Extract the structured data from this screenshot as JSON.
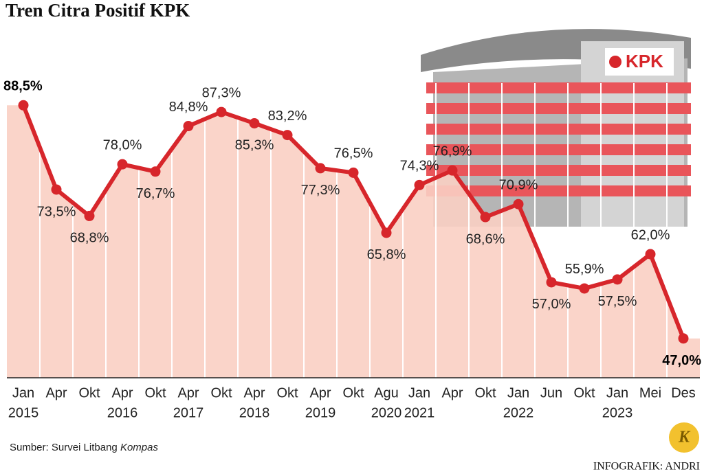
{
  "chart_data": {
    "type": "line",
    "title": "Tren Citra Positif KPK",
    "categories": [
      "Jan",
      "Apr",
      "Okt",
      "Apr",
      "Okt",
      "Apr",
      "Okt",
      "Apr",
      "Okt",
      "Apr",
      "Okt",
      "Agu",
      "Jan",
      "Apr",
      "Okt",
      "Jan",
      "Jun",
      "Okt",
      "Jan",
      "Mei",
      "Des"
    ],
    "years": [
      "2015",
      null,
      null,
      "2016",
      null,
      "2017",
      null,
      "2018",
      null,
      "2019",
      null,
      "2020",
      "2021",
      null,
      null,
      "2022",
      null,
      null,
      "2023",
      null,
      null
    ],
    "values": [
      88.5,
      73.5,
      68.8,
      78.0,
      76.7,
      84.8,
      87.3,
      85.3,
      83.2,
      77.3,
      76.5,
      65.8,
      74.3,
      76.9,
      68.6,
      70.9,
      57.0,
      55.9,
      57.5,
      62.0,
      47.0
    ],
    "value_labels": [
      "88,5%",
      "73,5%",
      "68,8%",
      "78,0%",
      "76,7%",
      "84,8%",
      "87,3%",
      "85,3%",
      "83,2%",
      "77,3%",
      "76,5%",
      "65,8%",
      "74,3%",
      "76,9%",
      "68,6%",
      "70,9%",
      "57,0%",
      "55,9%",
      "57,5%",
      "62,0%",
      "47,0%"
    ],
    "color": "#d7262b",
    "area_color": "#f9cfc3",
    "ylim": [
      40,
      90
    ],
    "source": "Sumber: Survei Litbang",
    "source_italic": "Kompas",
    "credit": "INFOGRAFIK: ANDRI",
    "logo_text": "KPK",
    "badge_text": "K"
  }
}
